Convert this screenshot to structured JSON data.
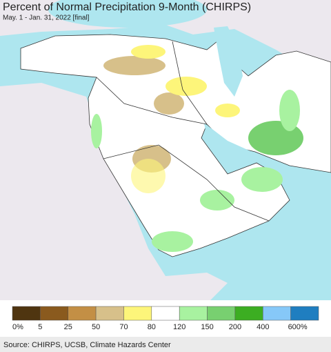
{
  "title": "Percent of Normal Precipitation 9-Month (CHIRPS)",
  "subtitle": "May. 1 - Jan. 31, 2022 [final]",
  "legend": {
    "colors": [
      "#4f3510",
      "#8a5a1e",
      "#c38f45",
      "#d7c08a",
      "#fdf57a",
      "#ffffff",
      "#a8f2a0",
      "#78d070",
      "#3cae22",
      "#86c8f8",
      "#1f7ec0"
    ],
    "labels": [
      "0%",
      "5",
      "25",
      "50",
      "70",
      "80",
      "120",
      "150",
      "200",
      "400",
      "600%"
    ]
  },
  "source": "Source: CHIRPS, UCSB, Climate Hazards Center"
}
